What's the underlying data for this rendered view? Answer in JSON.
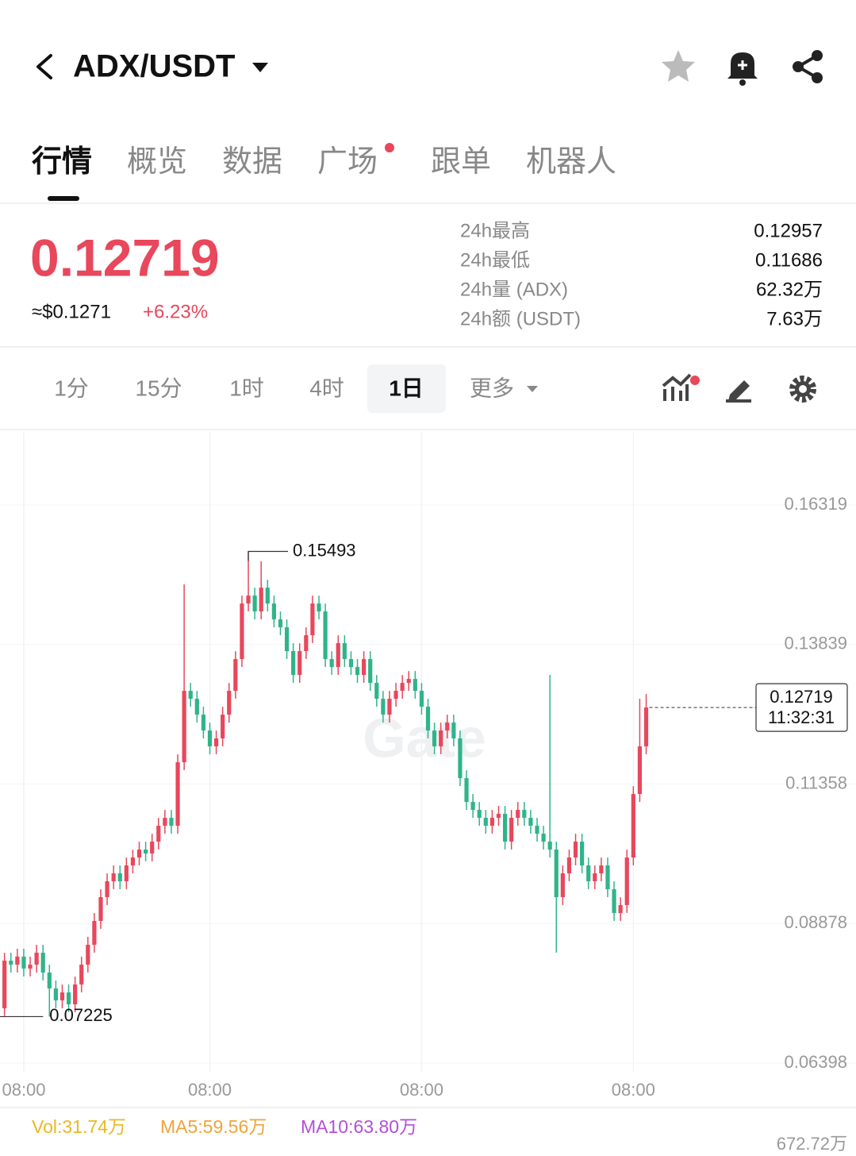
{
  "header": {
    "pair": "ADX/USDT"
  },
  "tabs": [
    "行情",
    "概览",
    "数据",
    "广场",
    "跟单",
    "机器人"
  ],
  "active_tab": 0,
  "ticker": {
    "price": "0.12719",
    "usd": "≈$0.1271",
    "change": "+6.23%",
    "stats": [
      {
        "label": "24h最高",
        "value": "0.12957"
      },
      {
        "label": "24h最低",
        "value": "0.11686"
      },
      {
        "label": "24h量 (ADX)",
        "value": "62.32万"
      },
      {
        "label": "24h额 (USDT)",
        "value": "7.63万"
      }
    ]
  },
  "intervals": [
    "1分",
    "15分",
    "1时",
    "4时",
    "1日",
    "更多"
  ],
  "active_interval": 4,
  "chart_data": {
    "type": "candlestick",
    "up_color": "#e8475c",
    "down_color": "#2fb489",
    "grid": true,
    "xlim": [
      -0.7,
      132.7
    ],
    "ylim": [
      0.06243,
      0.17603
    ],
    "xticks": [
      {
        "value": 3,
        "label": "08:00"
      },
      {
        "value": 32,
        "label": "08:00"
      },
      {
        "value": 65,
        "label": "08:00"
      },
      {
        "value": 98,
        "label": "08:00"
      }
    ],
    "yticks": [
      0.16319,
      0.13839,
      0.11358,
      0.08878,
      0.06398
    ],
    "ohlc": [
      [
        0.07373,
        0.0836,
        0.07233,
        0.0822
      ],
      [
        0.0822,
        0.0836,
        0.08009,
        0.08149
      ],
      [
        0.08149,
        0.08431,
        0.08009,
        0.08291
      ],
      [
        0.08291,
        0.08431,
        0.07939,
        0.08079
      ],
      [
        0.08079,
        0.08289,
        0.07939,
        0.08149
      ],
      [
        0.08149,
        0.08501,
        0.08009,
        0.08361
      ],
      [
        0.08361,
        0.08501,
        0.07868,
        0.08008
      ],
      [
        0.08008,
        0.08148,
        0.07225,
        0.07726
      ],
      [
        0.07726,
        0.07866,
        0.07374,
        0.07514
      ],
      [
        0.07514,
        0.07795,
        0.07374,
        0.07655
      ],
      [
        0.07655,
        0.07795,
        0.07303,
        0.07443
      ],
      [
        0.07443,
        0.07936,
        0.07303,
        0.07796
      ],
      [
        0.07796,
        0.08289,
        0.07656,
        0.08149
      ],
      [
        0.08149,
        0.08642,
        0.08009,
        0.08502
      ],
      [
        0.08502,
        0.09065,
        0.08362,
        0.08925
      ],
      [
        0.08925,
        0.09488,
        0.08785,
        0.09348
      ],
      [
        0.09348,
        0.0977,
        0.09208,
        0.0963
      ],
      [
        0.0963,
        0.09911,
        0.0949,
        0.09771
      ],
      [
        0.09771,
        0.09911,
        0.0949,
        0.0963
      ],
      [
        0.0963,
        0.10052,
        0.0949,
        0.09912
      ],
      [
        0.09912,
        0.10193,
        0.09772,
        0.10053
      ],
      [
        0.10053,
        0.10334,
        0.09913,
        0.10194
      ],
      [
        0.10194,
        0.10334,
        0.09984,
        0.10124
      ],
      [
        0.10124,
        0.10475,
        0.09984,
        0.10335
      ],
      [
        0.10335,
        0.10757,
        0.10195,
        0.10617
      ],
      [
        0.10617,
        0.10898,
        0.10477,
        0.10758
      ],
      [
        0.10758,
        0.10898,
        0.10477,
        0.10617
      ],
      [
        0.10617,
        0.11886,
        0.10477,
        0.11746
      ],
      [
        0.11746,
        0.14906,
        0.11606,
        0.13015
      ],
      [
        0.13015,
        0.13155,
        0.12734,
        0.12874
      ],
      [
        0.12874,
        0.13014,
        0.12452,
        0.12592
      ],
      [
        0.12592,
        0.12732,
        0.1217,
        0.1231
      ],
      [
        0.1231,
        0.1245,
        0.11888,
        0.12028
      ],
      [
        0.12028,
        0.12309,
        0.11888,
        0.12169
      ],
      [
        0.12169,
        0.12732,
        0.12029,
        0.12592
      ],
      [
        0.12592,
        0.13155,
        0.12452,
        0.13015
      ],
      [
        0.13015,
        0.1372,
        0.12875,
        0.1358
      ],
      [
        0.1358,
        0.14707,
        0.1344,
        0.14567
      ],
      [
        0.14567,
        0.15493,
        0.14427,
        0.14708
      ],
      [
        0.14708,
        0.14848,
        0.14286,
        0.14426
      ],
      [
        0.14426,
        0.15316,
        0.14286,
        0.14849
      ],
      [
        0.14849,
        0.14989,
        0.14427,
        0.14567
      ],
      [
        0.14567,
        0.14707,
        0.14145,
        0.14285
      ],
      [
        0.14285,
        0.14425,
        0.14004,
        0.14144
      ],
      [
        0.14144,
        0.14284,
        0.13581,
        0.13721
      ],
      [
        0.13721,
        0.13861,
        0.13157,
        0.13297
      ],
      [
        0.13297,
        0.13861,
        0.13157,
        0.13721
      ],
      [
        0.13721,
        0.14143,
        0.13581,
        0.14003
      ],
      [
        0.14003,
        0.14707,
        0.13863,
        0.14567
      ],
      [
        0.14567,
        0.14707,
        0.14286,
        0.14426
      ],
      [
        0.14426,
        0.14566,
        0.1344,
        0.1358
      ],
      [
        0.1358,
        0.1372,
        0.13298,
        0.13438
      ],
      [
        0.13438,
        0.14002,
        0.13298,
        0.13862
      ],
      [
        0.13862,
        0.14002,
        0.1344,
        0.1358
      ],
      [
        0.1358,
        0.1372,
        0.13298,
        0.13438
      ],
      [
        0.13438,
        0.13578,
        0.13157,
        0.13297
      ],
      [
        0.13297,
        0.1372,
        0.13157,
        0.1358
      ],
      [
        0.1358,
        0.1372,
        0.13016,
        0.13156
      ],
      [
        0.13156,
        0.13296,
        0.12734,
        0.12874
      ],
      [
        0.12874,
        0.13014,
        0.12452,
        0.12592
      ],
      [
        0.12592,
        0.13014,
        0.12452,
        0.12874
      ],
      [
        0.12874,
        0.13155,
        0.12734,
        0.13015
      ],
      [
        0.13015,
        0.13296,
        0.12875,
        0.13156
      ],
      [
        0.13156,
        0.13367,
        0.13016,
        0.13227
      ],
      [
        0.13227,
        0.13367,
        0.12875,
        0.13015
      ],
      [
        0.13015,
        0.13155,
        0.12593,
        0.12733
      ],
      [
        0.12733,
        0.12873,
        0.1217,
        0.1231
      ],
      [
        0.1231,
        0.1245,
        0.11888,
        0.12028
      ],
      [
        0.12028,
        0.1245,
        0.11888,
        0.1231
      ],
      [
        0.1231,
        0.12591,
        0.1217,
        0.12451
      ],
      [
        0.12451,
        0.12591,
        0.12029,
        0.12169
      ],
      [
        0.12169,
        0.12309,
        0.11323,
        0.11463
      ],
      [
        0.11463,
        0.11603,
        0.109,
        0.1104
      ],
      [
        0.1104,
        0.1118,
        0.10759,
        0.10899
      ],
      [
        0.10899,
        0.11039,
        0.10618,
        0.10758
      ],
      [
        0.10758,
        0.10898,
        0.10477,
        0.10617
      ],
      [
        0.10617,
        0.10898,
        0.10477,
        0.10758
      ],
      [
        0.10758,
        0.10969,
        0.10618,
        0.10829
      ],
      [
        0.10829,
        0.10969,
        0.10195,
        0.10335
      ],
      [
        0.10335,
        0.10898,
        0.10195,
        0.10758
      ],
      [
        0.10758,
        0.11039,
        0.10618,
        0.10899
      ],
      [
        0.10899,
        0.11039,
        0.10618,
        0.10758
      ],
      [
        0.10758,
        0.10898,
        0.10477,
        0.10617
      ],
      [
        0.10617,
        0.10757,
        0.10336,
        0.10476
      ],
      [
        0.10476,
        0.10616,
        0.10195,
        0.10335
      ],
      [
        0.10335,
        0.13297,
        0.10054,
        0.10194
      ],
      [
        0.10194,
        0.10334,
        0.08361,
        0.09348
      ],
      [
        0.09348,
        0.09911,
        0.09208,
        0.09771
      ],
      [
        0.09771,
        0.10193,
        0.09631,
        0.10053
      ],
      [
        0.10053,
        0.10475,
        0.09913,
        0.10335
      ],
      [
        0.10335,
        0.10475,
        0.09772,
        0.09912
      ],
      [
        0.09912,
        0.10052,
        0.0949,
        0.0963
      ],
      [
        0.0963,
        0.09911,
        0.0949,
        0.09771
      ],
      [
        0.09771,
        0.10052,
        0.09631,
        0.09912
      ],
      [
        0.09912,
        0.10052,
        0.09349,
        0.09489
      ],
      [
        0.09489,
        0.09629,
        0.08926,
        0.09066
      ],
      [
        0.09066,
        0.09347,
        0.08926,
        0.09207
      ],
      [
        0.09207,
        0.10193,
        0.09067,
        0.10053
      ],
      [
        0.10053,
        0.11321,
        0.09913,
        0.11181
      ],
      [
        0.11181,
        0.12874,
        0.11041,
        0.12028
      ],
      [
        0.12028,
        0.12957,
        0.11888,
        0.12719
      ]
    ],
    "high_label": 0.15493,
    "low_label": 0.07225,
    "last_price": 0.12719,
    "last_time": "11:32:31",
    "watermark": "Gate",
    "volume": {
      "labels": [
        "Vol:31.74万",
        "MA5:59.56万",
        "MA10:63.80万"
      ],
      "colors": [
        "#e9b824",
        "#f0a33a",
        "#b34fd6"
      ],
      "axis_label": "672.72万"
    }
  }
}
